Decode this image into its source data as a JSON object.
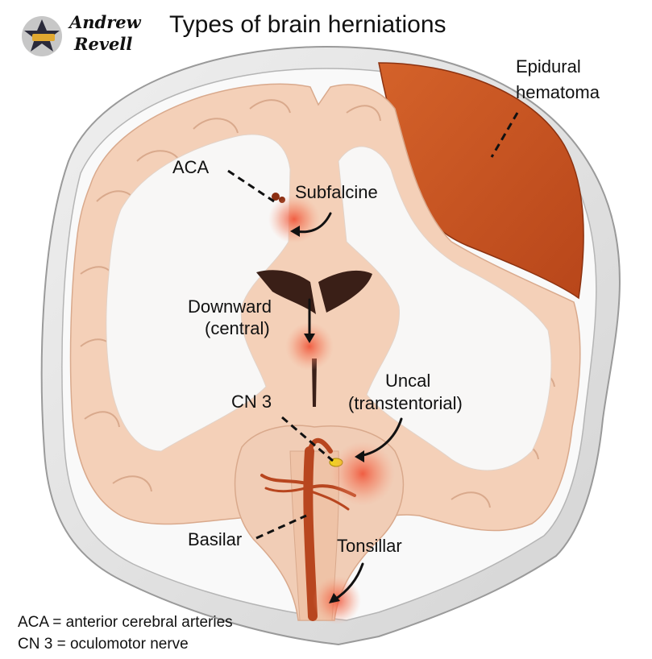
{
  "title": "Types of brain herniations",
  "logo": {
    "line1": "Andrew",
    "line2": "Revell"
  },
  "labels": {
    "epidural_line1": "Epidural",
    "epidural_line2": "hematoma",
    "aca": "ACA",
    "subfalcine": "Subfalcine",
    "downward_line1": "Downward",
    "downward_line2": "(central)",
    "uncal_line1": "Uncal",
    "uncal_line2": "(transtentorial)",
    "cn3": "CN 3",
    "basilar": "Basilar",
    "tonsillar": "Tonsillar"
  },
  "legend": [
    "ACA = anterior cerebral arteries",
    "CN 3 = oculomotor nerve"
  ],
  "colors": {
    "skull": "#e4e4e4",
    "cortex": "#f4d0b8",
    "white_matter": "#f8f7f6",
    "hematoma": "#c8531f",
    "artery": "#b8461f",
    "herniation_glow": "#f05a3a"
  }
}
